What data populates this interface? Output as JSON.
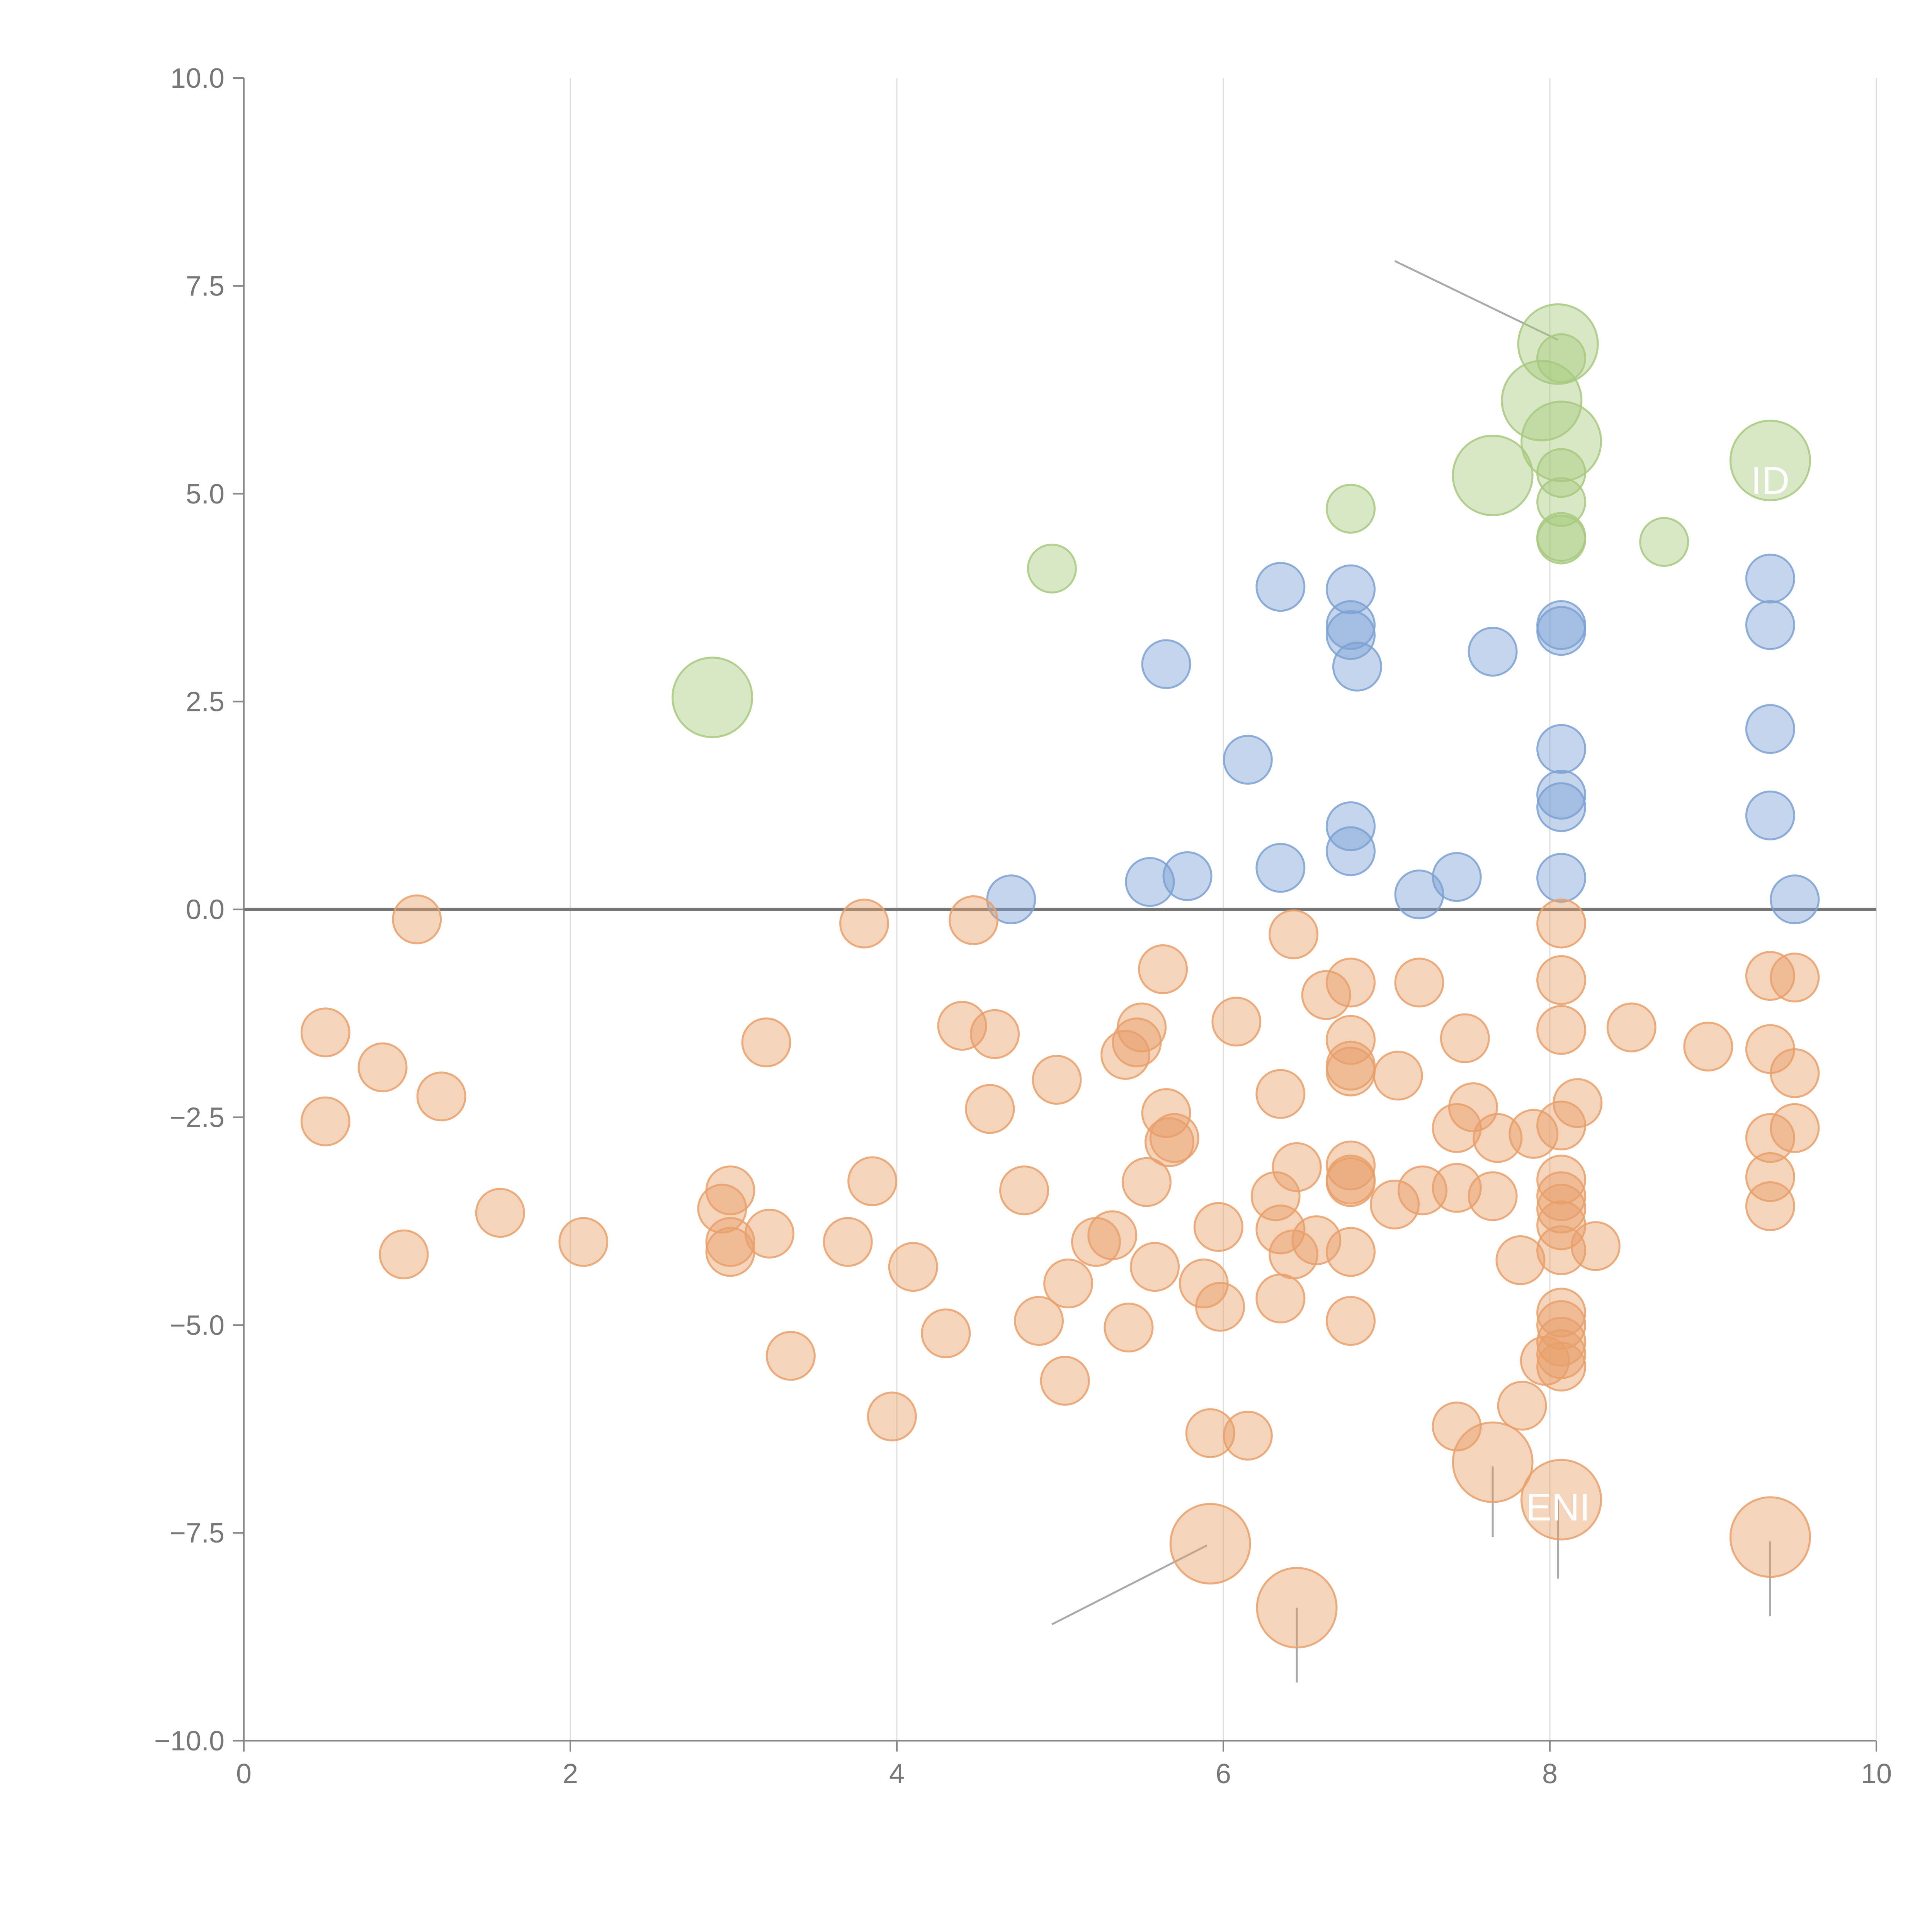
{
  "chart_data": {
    "type": "scatter",
    "title": "",
    "xlabel": "",
    "ylabel": "",
    "xlim": [
      0,
      10
    ],
    "ylim": [
      -10,
      10
    ],
    "x_ticks": [
      0,
      2,
      4,
      6,
      8,
      10
    ],
    "x_tick_labels": [
      "0",
      "2",
      "4",
      "6",
      "8",
      "10"
    ],
    "y_ticks": [
      -10,
      -7.5,
      -5,
      -2.5,
      0,
      2.5,
      5,
      7.5,
      10
    ],
    "y_tick_labels": [
      "−10.0",
      "−7.5",
      "−5.0",
      "−2.5",
      "0.0",
      "2.5",
      "5.0",
      "7.5",
      "10.0"
    ],
    "grid": "vertical",
    "zero_line": true,
    "colors": {
      "green": "#a8c97f",
      "blue": "#7da1d4",
      "orange": "#e9a06a",
      "axis": "#888888",
      "zero": "#777777",
      "leader": "#aaaaaa"
    },
    "annotations": [
      {
        "text": "ENI",
        "x": 8.05,
        "y": -7.35
      },
      {
        "text": "ID",
        "x": 9.35,
        "y": 5.0
      }
    ],
    "leaders": [
      {
        "x1": 7.05,
        "y1": 7.8,
        "x2": 8.05,
        "y2": 6.85,
        "color": "gray"
      },
      {
        "x1": 4.95,
        "y1": -8.6,
        "x2": 5.9,
        "y2": -7.65,
        "color": "gray"
      },
      {
        "x1": 6.45,
        "y1": -8.4,
        "x2": 6.45,
        "y2": -9.3,
        "color": "gray"
      },
      {
        "x1": 7.65,
        "y1": -6.7,
        "x2": 7.65,
        "y2": -7.55,
        "color": "gray"
      },
      {
        "x1": 8.05,
        "y1": -7.1,
        "x2": 8.05,
        "y2": -8.05,
        "color": "gray"
      },
      {
        "x1": 9.35,
        "y1": -7.6,
        "x2": 9.35,
        "y2": -8.5,
        "color": "gray"
      },
      {
        "x1": 7.85,
        "y1": 6.25,
        "x2": 7.95,
        "y2": 6.2,
        "color": "white"
      },
      {
        "x1": 8.1,
        "y1": 5.7,
        "x2": 8.2,
        "y2": 5.8,
        "color": "white"
      },
      {
        "x1": 7.55,
        "y1": 4.95,
        "x2": 7.6,
        "y2": 5.1,
        "color": "white"
      },
      {
        "x1": 9.35,
        "y1": 5.4,
        "x2": 9.4,
        "y2": 5.45,
        "color": "white"
      }
    ],
    "series": [
      {
        "name": "green",
        "color": "#a8c97f",
        "points": [
          {
            "x": 2.87,
            "y": 2.55,
            "size": "large"
          },
          {
            "x": 4.95,
            "y": 4.1,
            "size": "small"
          },
          {
            "x": 6.78,
            "y": 4.82,
            "size": "small"
          },
          {
            "x": 7.65,
            "y": 5.22,
            "size": "large"
          },
          {
            "x": 7.95,
            "y": 6.12,
            "size": "large"
          },
          {
            "x": 8.05,
            "y": 6.8,
            "size": "large"
          },
          {
            "x": 8.07,
            "y": 5.63,
            "size": "large"
          },
          {
            "x": 8.07,
            "y": 6.63,
            "size": "small"
          },
          {
            "x": 8.07,
            "y": 5.25,
            "size": "small"
          },
          {
            "x": 8.07,
            "y": 4.9,
            "size": "small"
          },
          {
            "x": 8.07,
            "y": 4.48,
            "size": "small"
          },
          {
            "x": 8.07,
            "y": 4.45,
            "size": "small"
          },
          {
            "x": 8.7,
            "y": 4.42,
            "size": "small"
          },
          {
            "x": 9.35,
            "y": 5.4,
            "size": "large"
          }
        ]
      },
      {
        "name": "blue",
        "color": "#7da1d4",
        "points": [
          {
            "x": 4.7,
            "y": 0.12
          },
          {
            "x": 5.55,
            "y": 0.33
          },
          {
            "x": 5.65,
            "y": 2.95
          },
          {
            "x": 5.78,
            "y": 0.4
          },
          {
            "x": 6.15,
            "y": 1.8
          },
          {
            "x": 6.35,
            "y": 3.88
          },
          {
            "x": 6.35,
            "y": 0.5
          },
          {
            "x": 6.78,
            "y": 3.85
          },
          {
            "x": 6.78,
            "y": 3.42
          },
          {
            "x": 6.78,
            "y": 3.3
          },
          {
            "x": 6.82,
            "y": 2.92
          },
          {
            "x": 6.78,
            "y": 1.0
          },
          {
            "x": 6.78,
            "y": 0.7
          },
          {
            "x": 7.2,
            "y": 0.18
          },
          {
            "x": 7.43,
            "y": 0.39
          },
          {
            "x": 7.65,
            "y": 3.1
          },
          {
            "x": 8.07,
            "y": 3.42
          },
          {
            "x": 8.07,
            "y": 3.35
          },
          {
            "x": 8.07,
            "y": 1.93
          },
          {
            "x": 8.07,
            "y": 1.38
          },
          {
            "x": 8.07,
            "y": 1.23
          },
          {
            "x": 8.07,
            "y": 0.38
          },
          {
            "x": 9.35,
            "y": 3.98
          },
          {
            "x": 9.35,
            "y": 3.42
          },
          {
            "x": 9.35,
            "y": 2.17
          },
          {
            "x": 9.35,
            "y": 1.13
          },
          {
            "x": 9.5,
            "y": 0.12
          }
        ]
      },
      {
        "name": "orange",
        "color": "#e9a06a",
        "points": [
          {
            "x": 0.5,
            "y": -1.48
          },
          {
            "x": 0.5,
            "y": -2.55
          },
          {
            "x": 0.85,
            "y": -1.9
          },
          {
            "x": 0.98,
            "y": -4.15
          },
          {
            "x": 1.06,
            "y": -0.12
          },
          {
            "x": 1.21,
            "y": -2.25
          },
          {
            "x": 1.57,
            "y": -3.65
          },
          {
            "x": 2.08,
            "y": -4.0
          },
          {
            "x": 2.93,
            "y": -3.6
          },
          {
            "x": 2.98,
            "y": -3.38
          },
          {
            "x": 2.98,
            "y": -4.12
          },
          {
            "x": 2.98,
            "y": -4.0
          },
          {
            "x": 3.2,
            "y": -1.6
          },
          {
            "x": 3.22,
            "y": -3.9
          },
          {
            "x": 3.35,
            "y": -5.37
          },
          {
            "x": 3.7,
            "y": -4.0
          },
          {
            "x": 3.8,
            "y": -0.17
          },
          {
            "x": 3.85,
            "y": -3.27
          },
          {
            "x": 3.97,
            "y": -6.1
          },
          {
            "x": 4.1,
            "y": -4.3
          },
          {
            "x": 4.3,
            "y": -5.1
          },
          {
            "x": 4.4,
            "y": -1.4
          },
          {
            "x": 4.47,
            "y": -0.13
          },
          {
            "x": 4.57,
            "y": -2.4
          },
          {
            "x": 4.6,
            "y": -1.5
          },
          {
            "x": 4.78,
            "y": -3.38
          },
          {
            "x": 4.87,
            "y": -4.95
          },
          {
            "x": 4.98,
            "y": -2.05
          },
          {
            "x": 5.03,
            "y": -5.67
          },
          {
            "x": 5.05,
            "y": -4.5
          },
          {
            "x": 5.22,
            "y": -4.0
          },
          {
            "x": 5.32,
            "y": -3.92
          },
          {
            "x": 5.4,
            "y": -1.75
          },
          {
            "x": 5.42,
            "y": -5.03
          },
          {
            "x": 5.47,
            "y": -1.6
          },
          {
            "x": 5.5,
            "y": -1.42
          },
          {
            "x": 5.53,
            "y": -3.28
          },
          {
            "x": 5.58,
            "y": -4.3
          },
          {
            "x": 5.63,
            "y": -0.72
          },
          {
            "x": 5.65,
            "y": -2.45
          },
          {
            "x": 5.67,
            "y": -2.8
          },
          {
            "x": 5.7,
            "y": -2.75
          },
          {
            "x": 5.88,
            "y": -4.5
          },
          {
            "x": 5.92,
            "y": -6.3
          },
          {
            "x": 5.97,
            "y": -3.82
          },
          {
            "x": 5.98,
            "y": -4.78
          },
          {
            "x": 6.08,
            "y": -1.35
          },
          {
            "x": 6.15,
            "y": -6.33
          },
          {
            "x": 6.32,
            "y": -3.45
          },
          {
            "x": 6.35,
            "y": -2.22
          },
          {
            "x": 6.35,
            "y": -3.85
          },
          {
            "x": 6.35,
            "y": -4.68
          },
          {
            "x": 6.43,
            "y": -0.3
          },
          {
            "x": 6.43,
            "y": -4.15
          },
          {
            "x": 6.45,
            "y": -3.1
          },
          {
            "x": 6.57,
            "y": -3.98
          },
          {
            "x": 6.63,
            "y": -1.03
          },
          {
            "x": 6.78,
            "y": -0.88
          },
          {
            "x": 6.78,
            "y": -1.57
          },
          {
            "x": 6.78,
            "y": -1.88
          },
          {
            "x": 6.78,
            "y": -1.95
          },
          {
            "x": 6.78,
            "y": -3.08
          },
          {
            "x": 6.78,
            "y": -3.25
          },
          {
            "x": 6.78,
            "y": -3.28
          },
          {
            "x": 6.78,
            "y": -4.12
          },
          {
            "x": 6.78,
            "y": -4.95
          },
          {
            "x": 7.05,
            "y": -3.55
          },
          {
            "x": 7.07,
            "y": -2.0
          },
          {
            "x": 7.2,
            "y": -0.88
          },
          {
            "x": 7.22,
            "y": -3.38
          },
          {
            "x": 7.43,
            "y": -2.63
          },
          {
            "x": 7.43,
            "y": -3.35
          },
          {
            "x": 7.43,
            "y": -6.22
          },
          {
            "x": 7.48,
            "y": -1.55
          },
          {
            "x": 7.53,
            "y": -2.38
          },
          {
            "x": 7.65,
            "y": -3.45
          },
          {
            "x": 7.68,
            "y": -2.75
          },
          {
            "x": 7.82,
            "y": -4.22
          },
          {
            "x": 7.83,
            "y": -5.97
          },
          {
            "x": 7.9,
            "y": -2.7
          },
          {
            "x": 7.97,
            "y": -5.43
          },
          {
            "x": 8.07,
            "y": -0.17
          },
          {
            "x": 8.07,
            "y": -0.85
          },
          {
            "x": 8.07,
            "y": -1.45
          },
          {
            "x": 8.07,
            "y": -2.6
          },
          {
            "x": 8.07,
            "y": -3.25
          },
          {
            "x": 8.07,
            "y": -3.45
          },
          {
            "x": 8.07,
            "y": -3.6
          },
          {
            "x": 8.07,
            "y": -3.8
          },
          {
            "x": 8.07,
            "y": -4.1
          },
          {
            "x": 8.07,
            "y": -4.85
          },
          {
            "x": 8.07,
            "y": -5.0
          },
          {
            "x": 8.07,
            "y": -5.2
          },
          {
            "x": 8.07,
            "y": -5.35
          },
          {
            "x": 8.07,
            "y": -5.5
          },
          {
            "x": 8.17,
            "y": -2.33
          },
          {
            "x": 8.28,
            "y": -4.05
          },
          {
            "x": 8.5,
            "y": -1.42
          },
          {
            "x": 8.97,
            "y": -1.65
          },
          {
            "x": 9.35,
            "y": -0.8
          },
          {
            "x": 9.35,
            "y": -1.68
          },
          {
            "x": 9.35,
            "y": -2.75
          },
          {
            "x": 9.35,
            "y": -3.22
          },
          {
            "x": 9.35,
            "y": -3.57
          },
          {
            "x": 9.5,
            "y": -0.82
          },
          {
            "x": 9.5,
            "y": -1.97
          },
          {
            "x": 9.5,
            "y": -2.63
          },
          {
            "x": 5.92,
            "y": -7.63,
            "size": "large"
          },
          {
            "x": 6.45,
            "y": -8.4,
            "size": "large"
          },
          {
            "x": 7.65,
            "y": -6.65,
            "size": "large"
          },
          {
            "x": 8.07,
            "y": -7.1,
            "size": "large"
          },
          {
            "x": 9.35,
            "y": -7.55,
            "size": "large"
          }
        ]
      }
    ]
  }
}
